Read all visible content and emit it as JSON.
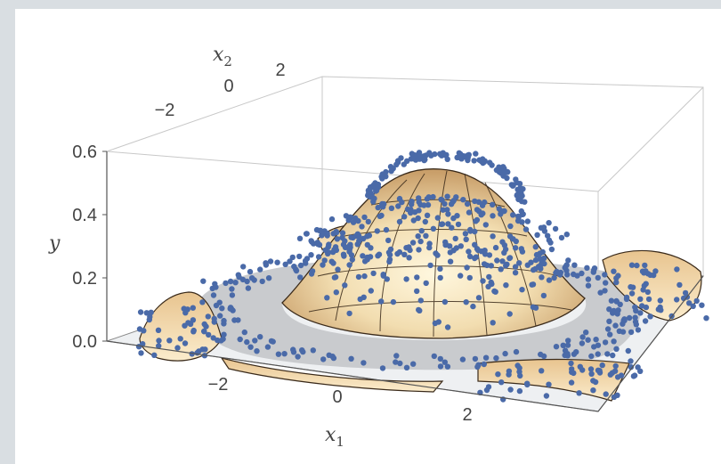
{
  "chart_data": {
    "type": "surface",
    "title": "",
    "xlabel": "x",
    "xlabel_sub": "1",
    "x2label": "x",
    "x2label_sub": "2",
    "ylabel": "y",
    "x_ticks": [
      "−2",
      "0",
      "2"
    ],
    "x2_ticks": [
      "−2",
      "0",
      "2"
    ],
    "y_ticks": [
      "0.0",
      "0.2",
      "0.4",
      "0.6"
    ],
    "x_range": [
      -3.6,
      3.6
    ],
    "x2_range": [
      -3.6,
      3.6
    ],
    "y_range": [
      0,
      0.6
    ],
    "surface": {
      "description": "fitted surface y(x1,x2) with central peak and outer wavy rim",
      "peak_height": 0.53,
      "ring_radius": 2.6,
      "rim_height_max": 0.28,
      "color": "#f3d9a8"
    },
    "points": {
      "color": "#4a6aa8",
      "description": "sample data: central dome near y≈0.6, flat ring at y≈0, outer scatter near edges"
    },
    "ring": {
      "color": "#c9cbce"
    }
  }
}
